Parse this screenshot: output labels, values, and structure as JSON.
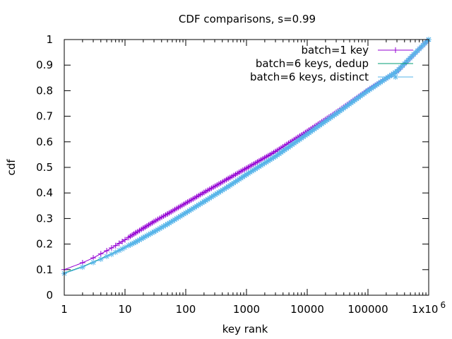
{
  "chart_data": {
    "type": "line",
    "title": "CDF comparisons, s=0.99",
    "xlabel": "key rank",
    "ylabel": "cdf",
    "xscale": "log",
    "xlim": [
      1,
      1000000
    ],
    "ylim": [
      0,
      1
    ],
    "x_ticks": [
      1,
      10,
      100,
      1000,
      10000,
      100000,
      1000000
    ],
    "x_tick_labels": [
      "1",
      "10",
      "100",
      "1000",
      "10000",
      "100000",
      "1x10"
    ],
    "x_last_tick_exponent": "6",
    "y_ticks": [
      0,
      0.1,
      0.2,
      0.3,
      0.4,
      0.5,
      0.6,
      0.7,
      0.8,
      0.9,
      1
    ],
    "y_tick_labels": [
      "0",
      "0.1",
      "0.2",
      "0.3",
      "0.4",
      "0.5",
      "0.6",
      "0.7",
      "0.8",
      "0.9",
      "1"
    ],
    "legend_position": "top-right",
    "series": [
      {
        "name": "batch=1 key",
        "color": "#9400d3",
        "marker": "plus",
        "x": [
          1,
          2,
          3,
          4,
          5,
          6,
          7,
          8,
          9,
          10,
          15,
          20,
          30,
          50,
          100,
          200,
          500,
          1000,
          3000,
          10000,
          30000,
          100000,
          300000,
          1000000
        ],
        "y": [
          0.1,
          0.127,
          0.146,
          0.162,
          0.174,
          0.185,
          0.194,
          0.203,
          0.21,
          0.217,
          0.244,
          0.262,
          0.288,
          0.318,
          0.36,
          0.402,
          0.456,
          0.497,
          0.562,
          0.641,
          0.715,
          0.803,
          0.875,
          1.0
        ]
      },
      {
        "name": "batch=6 keys, dedup",
        "color": "#009e73",
        "marker": "none",
        "x": [
          1,
          2,
          3,
          4,
          5,
          7,
          10,
          20,
          30,
          50,
          100,
          200,
          500,
          1000,
          3000,
          10000,
          30000,
          100000,
          300000,
          1000000
        ],
        "y": [
          0.087,
          0.112,
          0.13,
          0.143,
          0.154,
          0.17,
          0.189,
          0.227,
          0.25,
          0.28,
          0.325,
          0.369,
          0.428,
          0.475,
          0.546,
          0.632,
          0.712,
          0.803,
          0.878,
          1.0
        ]
      },
      {
        "name": "batch=6 keys, distinct",
        "color": "#56b4e9",
        "marker": "star",
        "x": [
          1,
          2,
          3,
          4,
          5,
          6,
          7,
          8,
          9,
          10,
          15,
          20,
          30,
          50,
          100,
          200,
          500,
          1000,
          3000,
          10000,
          30000,
          100000,
          300000,
          1000000
        ],
        "y": [
          0.085,
          0.11,
          0.128,
          0.141,
          0.152,
          0.16,
          0.168,
          0.175,
          0.181,
          0.187,
          0.208,
          0.225,
          0.248,
          0.278,
          0.322,
          0.366,
          0.425,
          0.472,
          0.543,
          0.63,
          0.71,
          0.8,
          0.876,
          1.0
        ]
      }
    ]
  }
}
